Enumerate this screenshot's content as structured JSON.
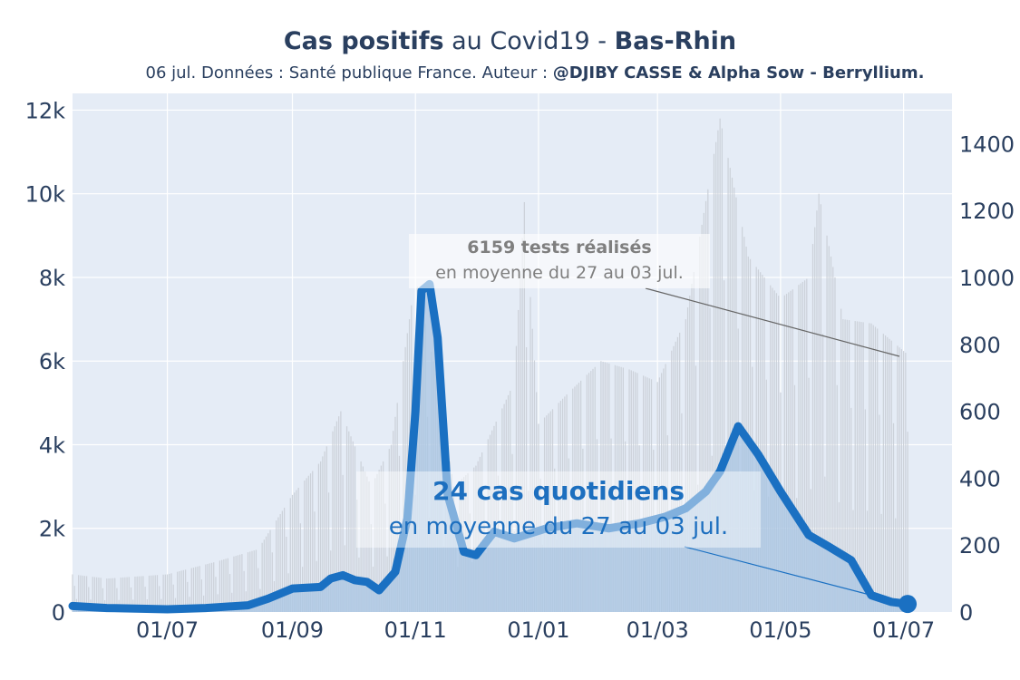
{
  "title": {
    "bold_part": "Cas positifs",
    "middle_part": " au Covid19 - ",
    "region": "Bas-Rhin"
  },
  "subtitle": {
    "prefix": "06 jul. Données : Santé publique France. Auteur : ",
    "authors": "@DJIBY CASSE & Alpha Sow - Berryllium."
  },
  "annotations": {
    "tests": {
      "headline": "6159 tests réalisés",
      "detail": "en moyenne du 27 au 03 jul."
    },
    "cases": {
      "headline": "24 cas quotidiens",
      "detail": "en moyenne du 27 au 03 jul."
    }
  },
  "colors": {
    "plot_bg": "#e5ecf6",
    "cases_line": "#1a70c2",
    "cases_fill": "#a9c6e3",
    "tests_bars": "#c9ced6",
    "text": "#2a3f5f"
  },
  "chart_data": {
    "type": "line",
    "x_ticks": [
      "01/07",
      "01/09",
      "01/11",
      "01/01",
      "01/03",
      "01/05",
      "01/07"
    ],
    "y_left": {
      "ticks": [
        "0",
        "2k",
        "4k",
        "6k",
        "8k",
        "10k",
        "12k"
      ],
      "range": [
        0,
        12400
      ]
    },
    "y_right": {
      "ticks": [
        "0",
        "200",
        "400",
        "600",
        "800",
        "1000",
        "1200",
        "1400"
      ],
      "range": [
        0,
        1550
      ]
    },
    "grid": true,
    "series": [
      {
        "axis": "right",
        "style": "line+area",
        "points": [
          [
            "2020-05-15",
            18
          ],
          [
            "2020-06-01",
            12
          ],
          [
            "2020-07-01",
            8
          ],
          [
            "2020-07-20",
            12
          ],
          [
            "2020-08-10",
            20
          ],
          [
            "2020-08-20",
            40
          ],
          [
            "2020-09-01",
            70
          ],
          [
            "2020-09-15",
            75
          ],
          [
            "2020-09-20",
            100
          ],
          [
            "2020-09-26",
            110
          ],
          [
            "2020-10-02",
            95
          ],
          [
            "2020-10-08",
            90
          ],
          [
            "2020-10-14",
            65
          ],
          [
            "2020-10-22",
            120
          ],
          [
            "2020-10-28",
            280
          ],
          [
            "2020-11-01",
            600
          ],
          [
            "2020-11-04",
            960
          ],
          [
            "2020-11-08",
            980
          ],
          [
            "2020-11-12",
            820
          ],
          [
            "2020-11-17",
            350
          ],
          [
            "2020-11-25",
            180
          ],
          [
            "2020-12-01",
            170
          ],
          [
            "2020-12-10",
            240
          ],
          [
            "2020-12-20",
            220
          ],
          [
            "2021-01-05",
            250
          ],
          [
            "2021-01-20",
            265
          ],
          [
            "2021-02-05",
            250
          ],
          [
            "2021-02-20",
            265
          ],
          [
            "2021-03-05",
            285
          ],
          [
            "2021-03-15",
            310
          ],
          [
            "2021-03-25",
            360
          ],
          [
            "2021-04-01",
            420
          ],
          [
            "2021-04-10",
            555
          ],
          [
            "2021-04-20",
            470
          ],
          [
            "2021-05-01",
            360
          ],
          [
            "2021-05-15",
            230
          ],
          [
            "2021-05-25",
            195
          ],
          [
            "2021-06-05",
            155
          ],
          [
            "2021-06-15",
            50
          ],
          [
            "2021-06-25",
            30
          ],
          [
            "2021-07-03",
            24
          ]
        ]
      },
      {
        "axis": "left",
        "style": "bars",
        "points": [
          [
            "2020-05-15",
            900
          ],
          [
            "2020-06-01",
            800
          ],
          [
            "2020-07-01",
            900
          ],
          [
            "2020-07-25",
            1200
          ],
          [
            "2020-08-15",
            1500
          ],
          [
            "2020-09-01",
            2800
          ],
          [
            "2020-09-15",
            3600
          ],
          [
            "2020-09-25",
            4800
          ],
          [
            "2020-10-10",
            3000
          ],
          [
            "2020-10-20",
            4000
          ],
          [
            "2020-11-01",
            8000
          ],
          [
            "2020-11-10",
            6000
          ],
          [
            "2020-11-20",
            3000
          ],
          [
            "2020-12-01",
            3500
          ],
          [
            "2020-12-20",
            5500
          ],
          [
            "2020-12-25",
            9800
          ],
          [
            "2021-01-01",
            4500
          ],
          [
            "2021-01-15",
            5200
          ],
          [
            "2021-02-01",
            6000
          ],
          [
            "2021-02-15",
            5800
          ],
          [
            "2021-03-01",
            5500
          ],
          [
            "2021-03-15",
            7000
          ],
          [
            "2021-04-01",
            11800
          ],
          [
            "2021-04-15",
            8500
          ],
          [
            "2021-05-01",
            7500
          ],
          [
            "2021-05-15",
            8000
          ],
          [
            "2021-05-20",
            10000
          ],
          [
            "2021-06-01",
            7000
          ],
          [
            "2021-06-15",
            6900
          ],
          [
            "2021-07-03",
            6159
          ]
        ]
      }
    ]
  }
}
